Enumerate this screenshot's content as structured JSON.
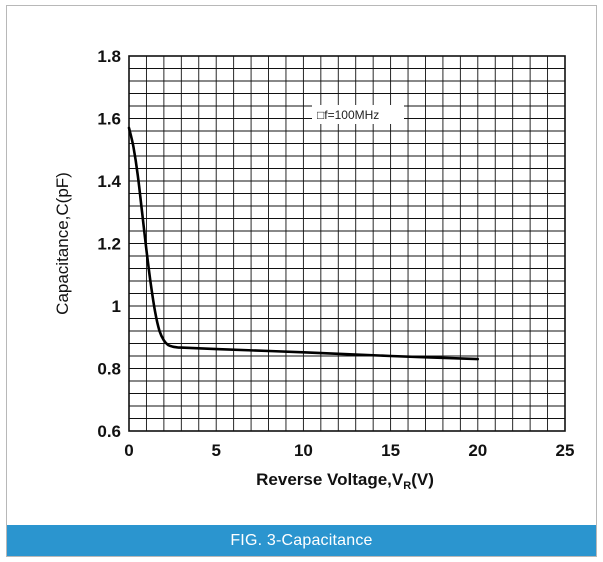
{
  "chart_data": {
    "type": "line",
    "title": "",
    "xlabel": "Reverse Voltage,V",
    "xlabel_subscript": "R",
    "xlabel_suffix": "(V)",
    "ylabel": "Capacitance,C(pF)",
    "xlim": [
      0,
      25
    ],
    "ylim": [
      0.6,
      1.8
    ],
    "x_ticks": [
      "0",
      "5",
      "10",
      "15",
      "20",
      "25"
    ],
    "y_ticks": [
      "0.6",
      "0.8",
      "1",
      "1.2",
      "1.4",
      "1.6",
      "1.8"
    ],
    "grid": true,
    "annotation": "□f=100MHz",
    "series": [
      {
        "x": [
          0,
          0.25,
          0.5,
          0.75,
          1.0,
          1.25,
          1.5,
          1.75,
          2.0,
          2.25,
          2.5,
          2.75,
          3,
          5,
          10,
          15,
          20
        ],
        "y": [
          1.57,
          1.51,
          1.42,
          1.3,
          1.18,
          1.07,
          0.98,
          0.92,
          0.89,
          0.875,
          0.87,
          0.868,
          0.867,
          0.862,
          0.852,
          0.84,
          0.83
        ]
      }
    ]
  },
  "caption": "FIG. 3-Capacitance"
}
